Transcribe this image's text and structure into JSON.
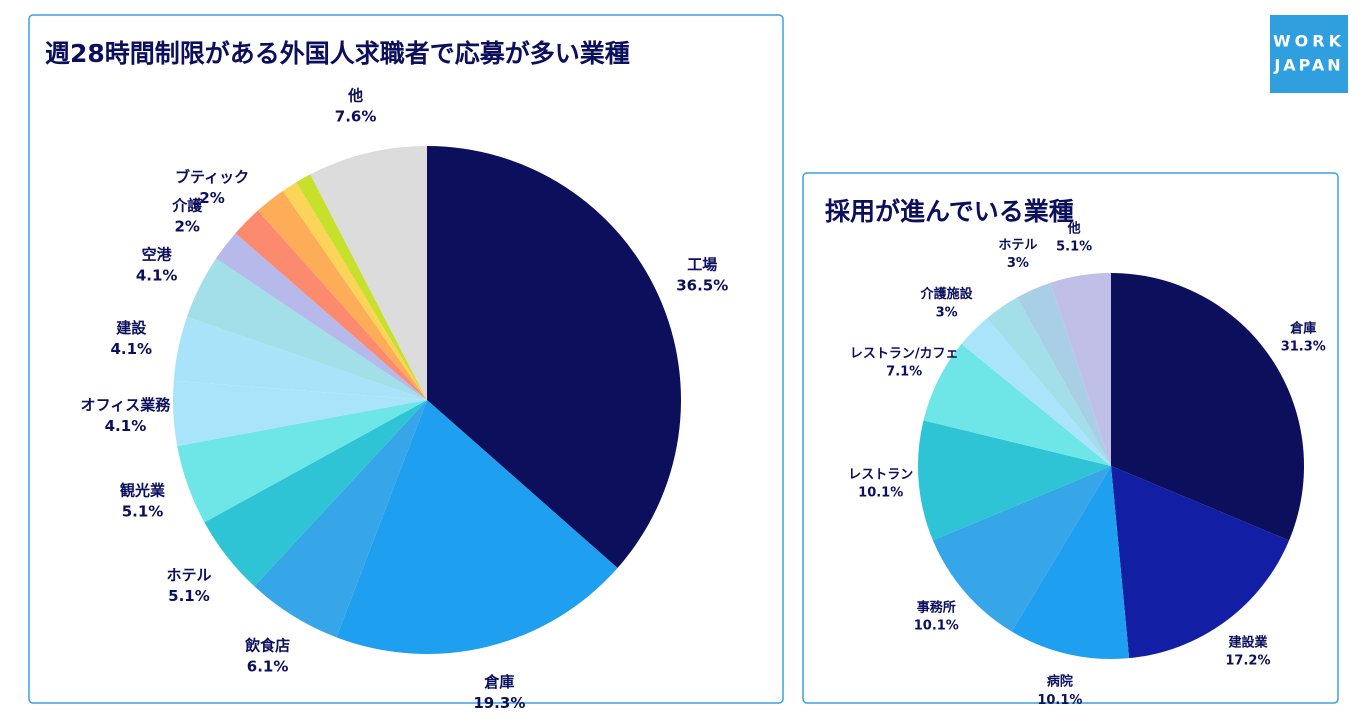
{
  "logo": {
    "line1": "WORK",
    "line2": "JAPAN"
  },
  "chart_data": [
    {
      "type": "pie",
      "title": "週28時間制限がある外国人求職者で応募が多い業種",
      "categories": [
        "工場",
        "倉庫",
        "飲食店",
        "ホテル",
        "観光業",
        "オフィス業務",
        "建設",
        "空港",
        "介護",
        "ブティック",
        null,
        null,
        null,
        "他"
      ],
      "values": [
        36.5,
        19.3,
        6.1,
        5.1,
        5.1,
        4.1,
        4.1,
        4.1,
        2,
        2,
        2,
        1,
        1,
        7.6
      ],
      "value_labels": [
        "36.5%",
        "19.3%",
        "6.1%",
        "5.1%",
        "5.1%",
        "4.1%",
        "4.1%",
        "4.1%",
        "2%",
        "2%",
        null,
        null,
        null,
        "7.6%"
      ],
      "colors": [
        "#0b0f5c",
        "#1f9fef",
        "#36a6e9",
        "#2ec4d6",
        "#6ee6e8",
        "#aae4fb",
        "#a9e3fa",
        "#a3dfe8",
        "#b7b9ea",
        "#fb8a6f",
        "#fdac57",
        "#fcd45a",
        "#c7e02b",
        "#dcdcdc"
      ]
    },
    {
      "type": "pie",
      "title": "採用が進んでいる業種",
      "categories": [
        "倉庫",
        "建設業",
        "病院",
        "事務所",
        "レストラン",
        "レストラン/カフェ",
        "介護施設",
        null,
        "ホテル",
        "他"
      ],
      "values": [
        31.3,
        17.2,
        10.1,
        10.1,
        10.1,
        7.1,
        3,
        3,
        3,
        5.1
      ],
      "value_labels": [
        "31.3%",
        "17.2%",
        "10.1%",
        "10.1%",
        "10.1%",
        "7.1%",
        "3%",
        null,
        "3%",
        "5.1%"
      ],
      "colors": [
        "#0b0f5c",
        "#121ea3",
        "#1f9fef",
        "#36a6e9",
        "#2ec4d6",
        "#6ee6e8",
        "#aae4fb",
        "#a3dfe8",
        "#a9cfe6",
        "#c0bfe8"
      ]
    }
  ]
}
